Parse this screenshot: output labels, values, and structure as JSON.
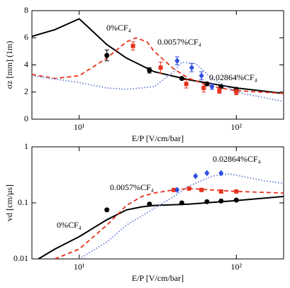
{
  "chart_data": [
    {
      "type": "line",
      "log_x": true,
      "y_label": "σz [mm] (1m)",
      "x_label": "E/P [V/cm/bar]",
      "xlim": [
        5,
        200
      ],
      "xticks": [
        {
          "value": 10,
          "label": "10¹"
        },
        {
          "value": 100,
          "label": "10²"
        }
      ],
      "ylim": [
        0,
        8
      ],
      "yticks": [
        0,
        2,
        4,
        6,
        8
      ],
      "series": [
        {
          "name": "0%CF₄",
          "color": "#000000",
          "dash": "solid",
          "x": [
            5,
            7,
            10,
            15,
            20,
            30,
            50,
            100,
            200
          ],
          "values": [
            6.1,
            6.6,
            7.4,
            5.5,
            4.5,
            3.5,
            2.9,
            2.3,
            1.9
          ]
        },
        {
          "name": "0.0057%CF₄",
          "color": "#e8321e",
          "dash": "dashed",
          "x": [
            5,
            7,
            10,
            15,
            20,
            23,
            27,
            30,
            40,
            50,
            70,
            100,
            200
          ],
          "values": [
            3.3,
            3.0,
            3.2,
            4.5,
            5.7,
            6.0,
            5.7,
            5.0,
            3.7,
            3.0,
            2.4,
            2.1,
            1.9
          ]
        },
        {
          "name": "0.02864%CF₄",
          "color": "#6a7fd8",
          "dash": "dotted",
          "x": [
            5,
            10,
            15,
            20,
            30,
            40,
            45,
            55,
            70,
            100,
            200
          ],
          "values": [
            3.2,
            2.7,
            2.3,
            2.2,
            2.4,
            3.5,
            4.2,
            4.1,
            3.0,
            2.0,
            1.3
          ]
        }
      ],
      "points": [
        {
          "color": "#000000",
          "marker": "circle",
          "x": [
            15,
            28,
            45,
            65,
            80,
            100
          ],
          "values": [
            4.7,
            3.6,
            3.0,
            2.6,
            2.4,
            2.2
          ],
          "errors": [
            0.4,
            0.2,
            0.1,
            0.1,
            0.1,
            0.1
          ]
        },
        {
          "color": "#e8321e",
          "marker": "square",
          "x": [
            22,
            33,
            48,
            62,
            78,
            100
          ],
          "values": [
            5.4,
            3.8,
            2.6,
            2.3,
            2.1,
            2.0
          ],
          "errors": [
            0.3,
            0.4,
            0.3,
            0.3,
            0.2,
            0.2
          ]
        },
        {
          "color": "#2f4fe0",
          "marker": "diamond",
          "x": [
            42,
            52,
            60,
            70
          ],
          "values": [
            4.3,
            3.8,
            3.2,
            2.4
          ],
          "errors": [
            0.3,
            0.3,
            0.3,
            0.2
          ]
        }
      ]
    },
    {
      "type": "line",
      "log_x": true,
      "log_y": true,
      "y_label": "vd [cm/μs]",
      "x_label": "E/P [V/cm/bar]",
      "xlim": [
        5,
        200
      ],
      "xticks": [
        {
          "value": 10,
          "label": "10¹"
        },
        {
          "value": 100,
          "label": "10²"
        }
      ],
      "ylim": [
        0.01,
        1
      ],
      "yticks": [
        0.01,
        0.1,
        1
      ],
      "series": [
        {
          "name": "0%CF₄",
          "color": "#000000",
          "dash": "solid",
          "x": [
            5.5,
            7,
            10,
            15,
            20,
            25,
            30,
            50,
            100,
            200
          ],
          "values": [
            0.01,
            0.015,
            0.025,
            0.05,
            0.075,
            0.085,
            0.09,
            0.095,
            0.11,
            0.13
          ]
        },
        {
          "name": "0.0057%CF₄",
          "color": "#e8321e",
          "dash": "dashed",
          "x": [
            7,
            10,
            15,
            20,
            25,
            30,
            40,
            50,
            70,
            100,
            200
          ],
          "values": [
            0.01,
            0.015,
            0.04,
            0.09,
            0.13,
            0.15,
            0.17,
            0.18,
            0.17,
            0.16,
            0.15
          ]
        },
        {
          "name": "0.02864%CF₄",
          "color": "#6a7fd8",
          "dash": "dotted",
          "x": [
            10,
            15,
            20,
            30,
            40,
            50,
            70,
            90,
            150,
            200
          ],
          "values": [
            0.01,
            0.02,
            0.04,
            0.08,
            0.13,
            0.2,
            0.3,
            0.33,
            0.25,
            0.22
          ]
        }
      ],
      "points": [
        {
          "color": "#000000",
          "marker": "circle",
          "x": [
            15,
            28,
            45,
            65,
            80,
            100
          ],
          "values": [
            0.075,
            0.095,
            0.1,
            0.105,
            0.108,
            0.112
          ]
        },
        {
          "color": "#e8321e",
          "marker": "square",
          "x": [
            40,
            50,
            60,
            80,
            100
          ],
          "values": [
            0.17,
            0.18,
            0.17,
            0.16,
            0.16
          ]
        },
        {
          "color": "#2f4fe0",
          "marker": "diamond",
          "x": [
            42,
            55,
            65,
            80
          ],
          "values": [
            0.17,
            0.3,
            0.34,
            0.34
          ]
        }
      ]
    }
  ]
}
